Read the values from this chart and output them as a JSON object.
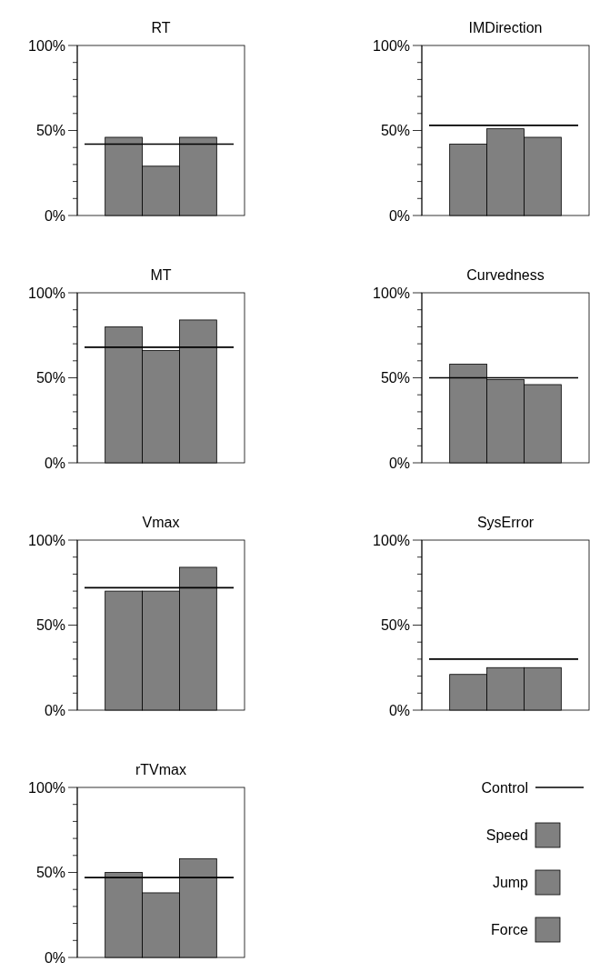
{
  "chart_data": [
    {
      "type": "bar",
      "title": "RT",
      "categories": [
        null
      ],
      "series": [
        {
          "color": "#808080",
          "values": [
            46
          ]
        },
        {
          "color": "#808080",
          "values": [
            29
          ]
        },
        {
          "color": "#808080",
          "values": [
            46
          ]
        }
      ],
      "ylim": [
        0,
        100
      ],
      "yticks": [
        {
          "value": 0,
          "label": "0%"
        },
        {
          "value": 10,
          "label": null
        },
        {
          "value": 20,
          "label": null
        },
        {
          "value": 30,
          "label": null
        },
        {
          "value": 40,
          "label": null
        },
        {
          "value": 50,
          "label": "50%"
        },
        {
          "value": 60,
          "label": null
        },
        {
          "value": 70,
          "label": null
        },
        {
          "value": 80,
          "label": null
        },
        {
          "value": 90,
          "label": null
        },
        {
          "value": 100,
          "label": "100%"
        }
      ],
      "ref_lines": [
        {
          "axis": "y",
          "value": 42,
          "color": "#000000"
        }
      ]
    },
    {
      "type": "bar",
      "title": "IMDirection",
      "categories": [
        null
      ],
      "series": [
        {
          "color": "#808080",
          "values": [
            42
          ]
        },
        {
          "color": "#808080",
          "values": [
            51
          ]
        },
        {
          "color": "#808080",
          "values": [
            46
          ]
        }
      ],
      "ylim": [
        0,
        100
      ],
      "yticks": [
        {
          "value": 0,
          "label": "0%"
        },
        {
          "value": 10,
          "label": null
        },
        {
          "value": 20,
          "label": null
        },
        {
          "value": 30,
          "label": null
        },
        {
          "value": 40,
          "label": null
        },
        {
          "value": 50,
          "label": "50%"
        },
        {
          "value": 60,
          "label": null
        },
        {
          "value": 70,
          "label": null
        },
        {
          "value": 80,
          "label": null
        },
        {
          "value": 90,
          "label": null
        },
        {
          "value": 100,
          "label": "100%"
        }
      ],
      "ref_lines": [
        {
          "axis": "y",
          "value": 53,
          "color": "#000000"
        }
      ]
    },
    {
      "type": "bar",
      "title": "MT",
      "categories": [
        null
      ],
      "series": [
        {
          "color": "#808080",
          "values": [
            80
          ]
        },
        {
          "color": "#808080",
          "values": [
            66
          ]
        },
        {
          "color": "#808080",
          "values": [
            84
          ]
        }
      ],
      "ylim": [
        0,
        100
      ],
      "yticks": [
        {
          "value": 0,
          "label": "0%"
        },
        {
          "value": 10,
          "label": null
        },
        {
          "value": 20,
          "label": null
        },
        {
          "value": 30,
          "label": null
        },
        {
          "value": 40,
          "label": null
        },
        {
          "value": 50,
          "label": "50%"
        },
        {
          "value": 60,
          "label": null
        },
        {
          "value": 70,
          "label": null
        },
        {
          "value": 80,
          "label": null
        },
        {
          "value": 90,
          "label": null
        },
        {
          "value": 100,
          "label": "100%"
        }
      ],
      "ref_lines": [
        {
          "axis": "y",
          "value": 68,
          "color": "#000000"
        }
      ]
    },
    {
      "type": "bar",
      "title": "Curvedness",
      "categories": [
        null
      ],
      "series": [
        {
          "color": "#808080",
          "values": [
            58
          ]
        },
        {
          "color": "#808080",
          "values": [
            49
          ]
        },
        {
          "color": "#808080",
          "values": [
            46
          ]
        }
      ],
      "ylim": [
        0,
        100
      ],
      "yticks": [
        {
          "value": 0,
          "label": "0%"
        },
        {
          "value": 10,
          "label": null
        },
        {
          "value": 20,
          "label": null
        },
        {
          "value": 30,
          "label": null
        },
        {
          "value": 40,
          "label": null
        },
        {
          "value": 50,
          "label": "50%"
        },
        {
          "value": 60,
          "label": null
        },
        {
          "value": 70,
          "label": null
        },
        {
          "value": 80,
          "label": null
        },
        {
          "value": 90,
          "label": null
        },
        {
          "value": 100,
          "label": "100%"
        }
      ],
      "ref_lines": [
        {
          "axis": "y",
          "value": 50,
          "color": "#000000"
        }
      ]
    },
    {
      "type": "bar",
      "title": "Vmax",
      "categories": [
        null
      ],
      "series": [
        {
          "color": "#808080",
          "values": [
            70
          ]
        },
        {
          "color": "#808080",
          "values": [
            70
          ]
        },
        {
          "color": "#808080",
          "values": [
            84
          ]
        }
      ],
      "ylim": [
        0,
        100
      ],
      "yticks": [
        {
          "value": 0,
          "label": "0%"
        },
        {
          "value": 10,
          "label": null
        },
        {
          "value": 20,
          "label": null
        },
        {
          "value": 30,
          "label": null
        },
        {
          "value": 40,
          "label": null
        },
        {
          "value": 50,
          "label": "50%"
        },
        {
          "value": 60,
          "label": null
        },
        {
          "value": 70,
          "label": null
        },
        {
          "value": 80,
          "label": null
        },
        {
          "value": 90,
          "label": null
        },
        {
          "value": 100,
          "label": "100%"
        }
      ],
      "ref_lines": [
        {
          "axis": "y",
          "value": 72,
          "color": "#000000"
        }
      ]
    },
    {
      "type": "bar",
      "title": "SysError",
      "categories": [
        null
      ],
      "series": [
        {
          "color": "#808080",
          "values": [
            21
          ]
        },
        {
          "color": "#808080",
          "values": [
            25
          ]
        },
        {
          "color": "#808080",
          "values": [
            25
          ]
        }
      ],
      "ylim": [
        0,
        100
      ],
      "yticks": [
        {
          "value": 0,
          "label": "0%"
        },
        {
          "value": 10,
          "label": null
        },
        {
          "value": 20,
          "label": null
        },
        {
          "value": 30,
          "label": null
        },
        {
          "value": 40,
          "label": null
        },
        {
          "value": 50,
          "label": "50%"
        },
        {
          "value": 60,
          "label": null
        },
        {
          "value": 70,
          "label": null
        },
        {
          "value": 80,
          "label": null
        },
        {
          "value": 90,
          "label": null
        },
        {
          "value": 100,
          "label": "100%"
        }
      ],
      "ref_lines": [
        {
          "axis": "y",
          "value": 30,
          "color": "#000000"
        }
      ]
    },
    {
      "type": "bar",
      "title": "rTVmax",
      "categories": [
        null
      ],
      "series": [
        {
          "name": "Speed",
          "color": "#808080",
          "values": [
            50
          ]
        },
        {
          "name": "Jump",
          "color": "#808080",
          "values": [
            38
          ]
        },
        {
          "name": "Force",
          "color": "#808080",
          "values": [
            58
          ]
        }
      ],
      "ylim": [
        0,
        100
      ],
      "yticks": [
        {
          "value": 0,
          "label": "0%"
        },
        {
          "value": 10,
          "label": null
        },
        {
          "value": 20,
          "label": null
        },
        {
          "value": 30,
          "label": null
        },
        {
          "value": 40,
          "label": null
        },
        {
          "value": 50,
          "label": "50%"
        },
        {
          "value": 60,
          "label": null
        },
        {
          "value": 70,
          "label": null
        },
        {
          "value": 80,
          "label": null
        },
        {
          "value": 90,
          "label": null
        },
        {
          "value": 100,
          "label": "100%"
        }
      ],
      "ref_lines": [
        {
          "axis": "y",
          "value": 47,
          "label": "Control",
          "color": "#000000"
        }
      ],
      "legend": "right"
    }
  ]
}
